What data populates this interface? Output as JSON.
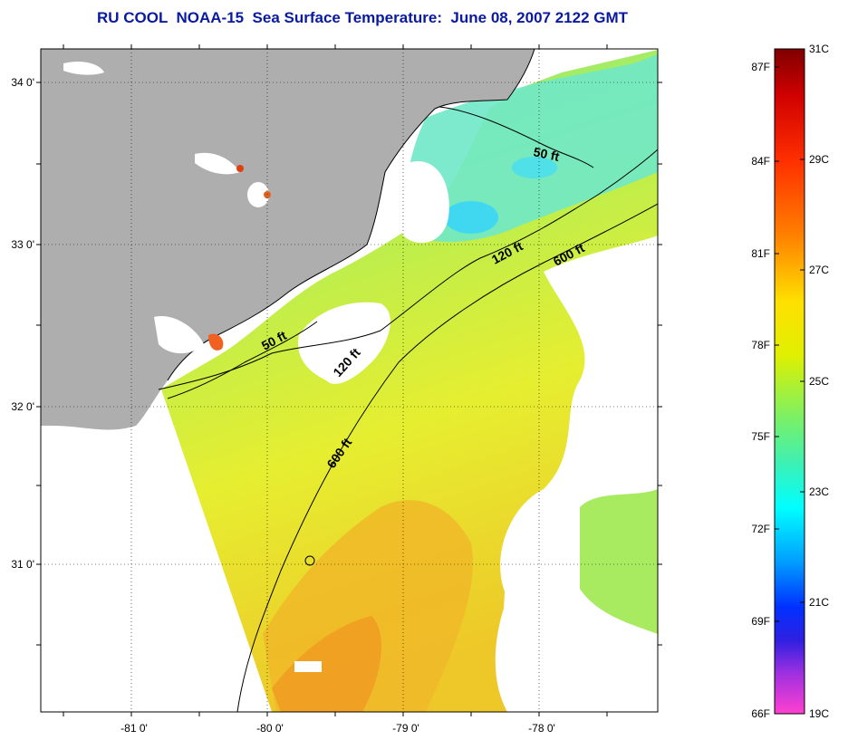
{
  "title": "RU COOL  NOAA-15  Sea Surface Temperature:  June 08, 2007 2122 GMT",
  "map": {
    "lat_ticks": [
      "34 0'",
      "33 0'",
      "32 0'",
      "31 0'"
    ],
    "lon_ticks": [
      "-81 0'",
      "-80 0'",
      "-79 0'",
      "-78 0'"
    ],
    "contour_labels": [
      "50 ft",
      "120 ft",
      "600 ft",
      "50 ft",
      "120 ft",
      "600 ft"
    ],
    "colors": {
      "land": "#aeaeae",
      "cloud": "#ffffff",
      "sst_green": "#9ee860",
      "sst_yellow": "#e8ee30",
      "sst_orange": "#f0b020",
      "sst_cyan": "#40e8d8"
    }
  },
  "colorbar": {
    "fahrenheit_labels": [
      "87F",
      "84F",
      "81F",
      "78F",
      "75F",
      "72F",
      "69F",
      "66F"
    ],
    "celsius_labels": [
      "31C",
      "29C",
      "27C",
      "25C",
      "23C",
      "21C",
      "19C"
    ],
    "range_celsius": [
      19,
      31
    ]
  }
}
